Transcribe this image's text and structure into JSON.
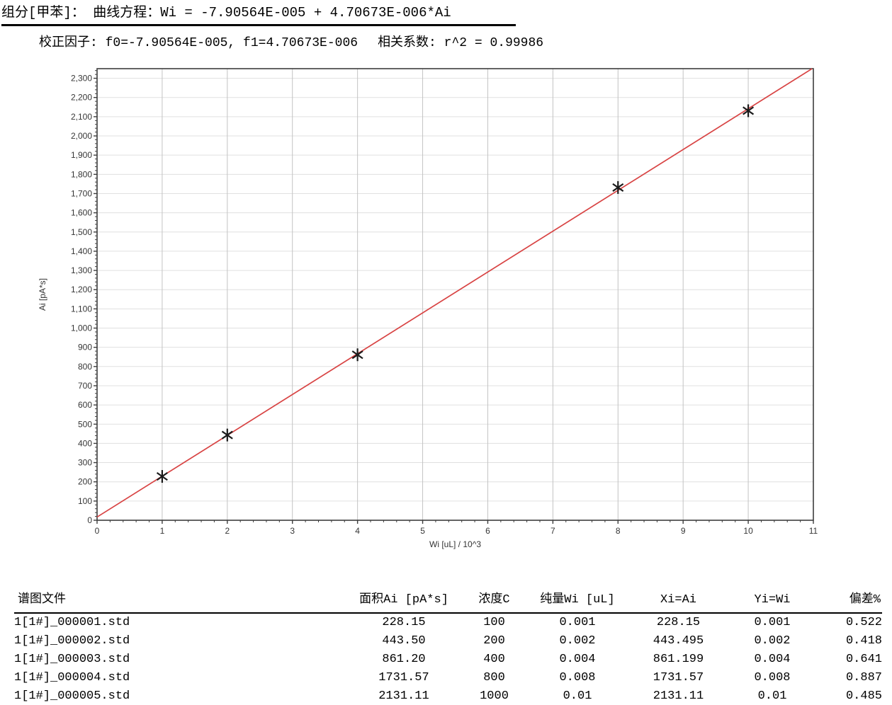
{
  "header": {
    "line1": "组分[甲苯]：  曲线方程：Wi = -7.90564E-005 + 4.70673E-006*Ai",
    "line2_factors": "校正因子: f0=-7.90564E-005, f1=4.70673E-006",
    "line2_correlation": "相关系数: r^2 = 0.99986"
  },
  "chart_data": {
    "type": "scatter",
    "title": "",
    "xlabel": "Wi [uL] / 10^3",
    "ylabel": "Ai [pA*s]",
    "xlim": [
      0,
      11
    ],
    "ylim": [
      0,
      2350
    ],
    "x_tick_step": 1,
    "y_tick_step": 100,
    "y_tick_max": 2300,
    "x_minor_step": 0.2,
    "y_minor_step": 20,
    "grid": true,
    "legend": false,
    "marker": "asterisk",
    "x": [
      1,
      2,
      4,
      8,
      10
    ],
    "y": [
      228.15,
      443.495,
      861.199,
      1731.57,
      2131.11
    ],
    "regression_line": {
      "x1": 0,
      "y1": 16.8,
      "x2": 10.98,
      "y2": 2350
    },
    "colors": {
      "fit_line": "#d84343",
      "marker": "#1b1b1b",
      "grid_h": "#e0e0e0",
      "grid_v": "#c3c3c3",
      "border": "#3d3d3d",
      "tick": "#3d3d3d"
    }
  },
  "table": {
    "columns": [
      "谱图文件",
      "面积Ai [pA*s]",
      "浓度C",
      "纯量Wi [uL]",
      "Xi=Ai",
      "Yi=Wi",
      "偏差%"
    ],
    "rows": [
      [
        "1[1#]_000001.std",
        "228.15",
        "100",
        "0.001",
        "228.15",
        "0.001",
        "0.522"
      ],
      [
        "1[1#]_000002.std",
        "443.50",
        "200",
        "0.002",
        "443.495",
        "0.002",
        "0.418"
      ],
      [
        "1[1#]_000003.std",
        "861.20",
        "400",
        "0.004",
        "861.199",
        "0.004",
        "0.641"
      ],
      [
        "1[1#]_000004.std",
        "1731.57",
        "800",
        "0.008",
        "1731.57",
        "0.008",
        "0.887"
      ],
      [
        "1[1#]_000005.std",
        "2131.11",
        "1000",
        "0.01",
        "2131.11",
        "0.01",
        "0.485"
      ]
    ]
  }
}
